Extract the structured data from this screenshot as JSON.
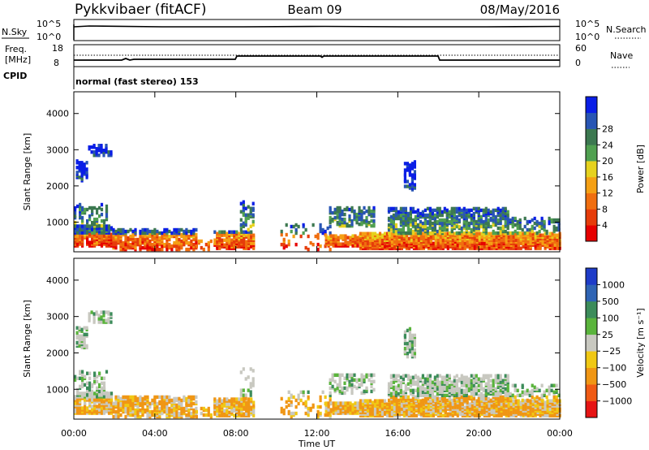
{
  "header": {
    "radar": "Pykkvibaer (fitACF)",
    "beam": "Beam 09",
    "date": "08/May/2016"
  },
  "top_panels": {
    "nsky_label": "N.Sky",
    "nsky_ticks": [
      "10^5",
      "10^0"
    ],
    "nsearch_label": "N.Search",
    "freq_label_line1": "Freq.",
    "freq_label_line2": "[MHz]",
    "freq_ticks": [
      "18",
      "8"
    ],
    "nave_label": "Nave",
    "nave_ticks": [
      "60",
      "0"
    ],
    "cpid_label": "CPID",
    "cpid_text": "normal (fast stereo) 153"
  },
  "chart_data": [
    {
      "type": "heatmap",
      "parameter": "power",
      "ylabel": "Slant Range [km]",
      "yticks": [
        1000,
        2000,
        3000,
        4000
      ],
      "ylim": [
        180,
        4600
      ],
      "xticks": [
        "00:00",
        "04:00",
        "08:00",
        "12:00",
        "16:00",
        "20:00",
        "00:00"
      ],
      "xlim_hours": [
        0,
        24
      ],
      "colorbar": {
        "label": "Power [dB]",
        "ticks": [
          "4",
          "8",
          "12",
          "16",
          "20",
          "24",
          "28"
        ],
        "colors": [
          "#0a1ee6",
          "#2855b4",
          "#3c7850",
          "#50a050",
          "#e6d21e",
          "#f5a014",
          "#f06e0f",
          "#e63c0a",
          "#e60000"
        ]
      }
    },
    {
      "type": "heatmap",
      "parameter": "velocity",
      "ylabel": "Slant Range [km]",
      "yticks": [
        1000,
        2000,
        3000,
        4000
      ],
      "ylim": [
        180,
        4600
      ],
      "xticks": [
        "00:00",
        "04:00",
        "08:00",
        "12:00",
        "16:00",
        "20:00",
        "00:00"
      ],
      "xlim_hours": [
        0,
        24
      ],
      "xlabel": "Time UT",
      "colorbar": {
        "label": "Velocity [m s⁻¹]",
        "ticks": [
          "1000",
          "500",
          "100",
          "25",
          "−25",
          "−100",
          "−500",
          "−1000"
        ],
        "colors": [
          "#1e3cc8",
          "#2f64b4",
          "#3c8c5a",
          "#5ab43c",
          "#c8c8c0",
          "#f0c814",
          "#f09614",
          "#f05a14",
          "#e61414"
        ]
      }
    }
  ]
}
